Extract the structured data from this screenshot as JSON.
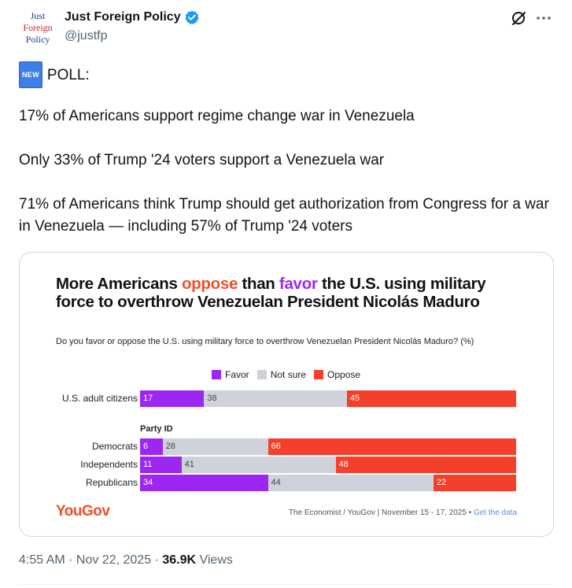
{
  "tweet": {
    "display_name": "Just Foreign Policy",
    "handle": "@justfp",
    "avatar_text": [
      "Just",
      "Foreign",
      "Policy"
    ],
    "new_badge": "NEW",
    "poll_label": "POLL:",
    "lines": [
      "17% of Americans support regime change war in Venezuela",
      "Only 33% of Trump '24 voters support a Venezuela war",
      "71% of Americans think Trump should get authorization from Congress for a war in Venezuela — including 57% of Trump '24 voters"
    ],
    "timestamp": "4:55 AM · Nov 22, 2025 · ",
    "views_count": "36.9K",
    "views_label": " Views",
    "icons": {
      "verified": "verified-badge-icon",
      "grok": "grok-icon",
      "more": "more-icon"
    }
  },
  "chart_data": {
    "type": "bar",
    "stacked": true,
    "orientation": "horizontal",
    "title_parts": [
      "More Americans ",
      "oppose",
      " than ",
      "favor",
      " the U.S. using military force to overthrow Venezuelan President Nicolás Maduro"
    ],
    "subtitle": "Do you favor or oppose the U.S. using military force to overthrow Venezuelan President Nicolás Maduro? (%)",
    "legend": [
      "Favor",
      "Not sure",
      "Oppose"
    ],
    "colors": {
      "favor": "#9c27f2",
      "not_sure": "#cfd2db",
      "oppose": "#f43f2a"
    },
    "group_label": "Party ID",
    "categories": [
      "U.S. adult citizens",
      "Democrats",
      "Independents",
      "Republicans"
    ],
    "series": [
      {
        "name": "Favor",
        "values": [
          17,
          6,
          11,
          34
        ]
      },
      {
        "name": "Not sure",
        "values": [
          38,
          28,
          41,
          44
        ]
      },
      {
        "name": "Oppose",
        "values": [
          45,
          66,
          48,
          22
        ]
      }
    ],
    "brand": "YouGov",
    "source": "The Economist / YouGov | November 15 - 17, 2025 • ",
    "source_link": "Get the data"
  }
}
